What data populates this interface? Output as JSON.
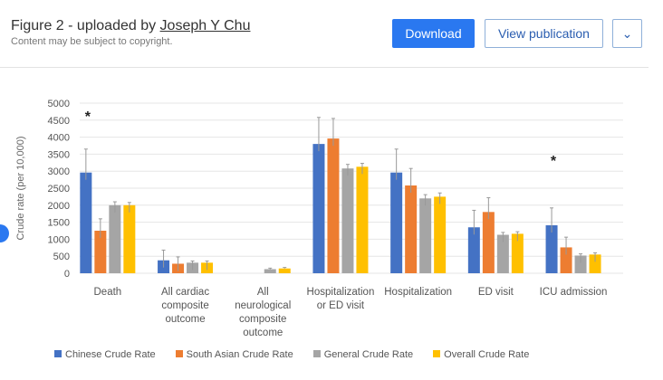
{
  "header": {
    "title_prefix": "Figure 2 - uploaded by ",
    "author": "Joseph Y Chu",
    "subtitle": "Content may be subject to copyright.",
    "download": "Download",
    "view_publication": "View publication",
    "more": "⌄"
  },
  "chart_data": {
    "type": "bar",
    "ylabel": "Crude rate (per 10,000)",
    "ylim": [
      0,
      5000
    ],
    "yticks": [
      "0",
      "500",
      "1000",
      "1500",
      "2000",
      "2500",
      "3000",
      "3500",
      "4000",
      "4500",
      "5000"
    ],
    "categories": [
      [
        "Death"
      ],
      [
        "All cardiac",
        "composite",
        "outcome"
      ],
      [
        "All",
        "neurological",
        "composite",
        "outcome"
      ],
      [
        "Hospitalization",
        "or ED visit"
      ],
      [
        "Hospitalization"
      ],
      [
        "ED visit"
      ],
      [
        "ICU admission"
      ]
    ],
    "series": [
      {
        "name": "Chinese Crude Rate",
        "color": "#4472c4",
        "values": [
          2960,
          380,
          0,
          3800,
          2960,
          1350,
          1410
        ],
        "err_upper": [
          3650,
          680,
          0,
          4580,
          3650,
          1850,
          1920
        ]
      },
      {
        "name": "South Asian Crude Rate",
        "color": "#ed7d31",
        "values": [
          1250,
          280,
          0,
          3960,
          2580,
          1800,
          760
        ],
        "err_upper": [
          1600,
          480,
          0,
          4550,
          3080,
          2220,
          1060
        ]
      },
      {
        "name": "General Crude Rate",
        "color": "#a5a5a5",
        "values": [
          2000,
          310,
          120,
          3080,
          2200,
          1130,
          520
        ],
        "err_upper": [
          2100,
          360,
          150,
          3200,
          2310,
          1200,
          570
        ]
      },
      {
        "name": "Overall Crude Rate",
        "color": "#ffc000",
        "values": [
          2000,
          310,
          140,
          3130,
          2250,
          1160,
          550
        ],
        "err_upper": [
          2080,
          360,
          170,
          3230,
          2360,
          1220,
          600
        ]
      }
    ],
    "annotations": [
      {
        "category": "Death",
        "text": "*"
      },
      {
        "category": "ICU admission",
        "text": "*"
      }
    ],
    "grid": true,
    "legend": "bottom"
  }
}
